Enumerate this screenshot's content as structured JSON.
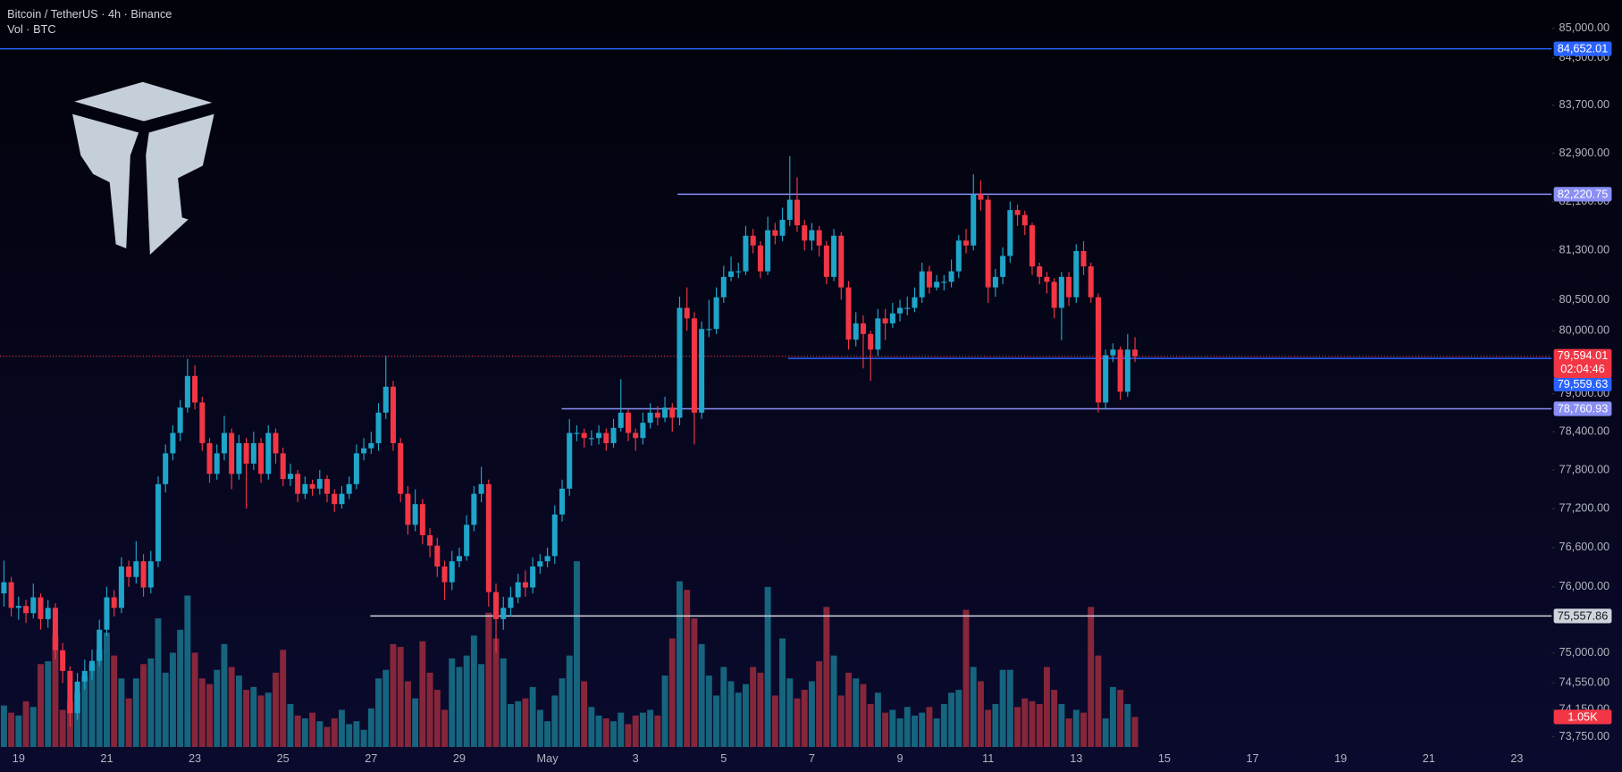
{
  "chart_data": {
    "type": "candlestick",
    "title": "Bitcoin / TetherUS · 4h · Binance",
    "subtitle": "Vol · BTC",
    "log_scale": true,
    "grid": false,
    "up_color": "#1fa5c9",
    "down_color": "#f23645",
    "volume_up_color": "#16647d",
    "volume_down_color": "#86263a",
    "x_labels": [
      "19",
      "21",
      "23",
      "25",
      "27",
      "29",
      "May",
      "3",
      "5",
      "7",
      "9",
      "11",
      "13",
      "15",
      "17",
      "19",
      "21",
      "23"
    ],
    "ylim": [
      73600,
      85480
    ],
    "yticks": [
      {
        "value": 85000,
        "label": "85,000.00"
      },
      {
        "value": 84500,
        "label": "84,500.00"
      },
      {
        "value": 83700,
        "label": "83,700.00"
      },
      {
        "value": 82900,
        "label": "82,900.00"
      },
      {
        "value": 82100,
        "label": "82,100.00"
      },
      {
        "value": 81300,
        "label": "81,300.00"
      },
      {
        "value": 80500,
        "label": "80,500.00"
      },
      {
        "value": 80000,
        "label": "80,000.00"
      },
      {
        "value": 79000,
        "label": "79,000.00"
      },
      {
        "value": 78400,
        "label": "78,400.00"
      },
      {
        "value": 77800,
        "label": "77,800.00"
      },
      {
        "value": 77200,
        "label": "77,200.00"
      },
      {
        "value": 76600,
        "label": "76,600.00"
      },
      {
        "value": 76000,
        "label": "76,000.00"
      },
      {
        "value": 75000,
        "label": "75,000.00"
      },
      {
        "value": 74550,
        "label": "74,550.00"
      },
      {
        "value": 74150,
        "label": "74,150.00"
      },
      {
        "value": 73750,
        "label": "73,750.00"
      }
    ],
    "levels": [
      {
        "value": 84652.01,
        "label": "84,652.01",
        "color": "#2962ff"
      },
      {
        "value": 82220.75,
        "label": "82,220.75",
        "color": "#8a8ff5"
      },
      {
        "value": 79559.63,
        "label": "79,559.63",
        "color": "#2962ff"
      },
      {
        "value": 78760.93,
        "label": "78,760.93",
        "color": "#8a8ff5"
      },
      {
        "value": 75557.86,
        "label": "75,557.86",
        "color": "#d1d4dc"
      }
    ],
    "last_close_label": "79,594.01",
    "countdown": "02:04:46",
    "volume_last_label": "1.05K",
    "open": [
      75900,
      76070,
      75680,
      75710,
      75600,
      75840,
      75510,
      75680,
      75040,
      74730,
      74100,
      74570,
      74730,
      74880,
      75350,
      75840,
      75680,
      76310,
      76150,
      76390,
      75990,
      76390,
      77580,
      78060,
      78380,
      78780,
      79280,
      78860,
      78220,
      77740,
      78060,
      78380,
      77740,
      78220,
      77900,
      78220,
      77740,
      78380,
      78060,
      77660,
      77740,
      77430,
      77580,
      77510,
      77660,
      77430,
      77270,
      77430,
      77580,
      78060,
      78140,
      78220,
      78700,
      79110,
      78220,
      77430,
      76950,
      77270,
      76790,
      76630,
      76310,
      76070,
      76390,
      76470,
      76950,
      77430,
      77580,
      75920,
      75510,
      75680,
      75840,
      76070,
      75990,
      76310,
      76390,
      76470,
      77110,
      77510,
      78380,
      78380,
      78300,
      78300,
      78380,
      78220,
      78460,
      78700,
      78380,
      78300,
      78540,
      78700,
      78620,
      78780,
      78620,
      80370,
      80200,
      78700,
      80030,
      80030,
      80540,
      80870,
      80960,
      80960,
      81540,
      81380,
      80960,
      81630,
      81540,
      81800,
      82130,
      81710,
      81460,
      81630,
      81380,
      80870,
      81540,
      80700,
      79860,
      80120,
      79950,
      79700,
      80200,
      80120,
      80280,
      80370,
      80370,
      80540,
      80960,
      80700,
      80790,
      80790,
      80960,
      81460,
      81380,
      82220,
      82130,
      80700,
      80870,
      81210,
      81960,
      81880,
      81710,
      81040,
      80870,
      80790,
      80370,
      80870,
      80540,
      81290,
      81040,
      80540,
      78860,
      79610,
      79700,
      79030,
      79700
    ],
    "high": [
      76400,
      76150,
      75850,
      75800,
      76050,
      75900,
      75800,
      75750,
      75150,
      74800,
      74700,
      74900,
      75050,
      75500,
      76000,
      75950,
      76450,
      76400,
      76700,
      76500,
      76550,
      77700,
      78200,
      78500,
      78900,
      79550,
      79450,
      78950,
      78300,
      78200,
      78650,
      78450,
      78350,
      78300,
      78400,
      78300,
      78500,
      78450,
      78150,
      77900,
      77800,
      77700,
      77650,
      77800,
      77720,
      77500,
      77550,
      77700,
      78200,
      78300,
      78400,
      78850,
      79600,
      79200,
      78300,
      77550,
      77500,
      77350,
      76900,
      76750,
      76400,
      76550,
      76600,
      77100,
      77550,
      77850,
      77650,
      76050,
      75850,
      76000,
      76200,
      76250,
      76450,
      76500,
      76600,
      77250,
      77650,
      78600,
      78500,
      78450,
      78420,
      78500,
      78450,
      78600,
      79230,
      78750,
      78450,
      78700,
      78850,
      78800,
      78950,
      78850,
      80550,
      80700,
      80300,
      80150,
      80500,
      80700,
      81050,
      81200,
      81100,
      81700,
      81650,
      81450,
      81850,
      81750,
      82000,
      82850,
      82500,
      81800,
      81750,
      81700,
      81450,
      81650,
      81600,
      80800,
      80300,
      80250,
      80000,
      80350,
      80350,
      80450,
      80500,
      80550,
      80700,
      81100,
      81050,
      80900,
      80900,
      81150,
      81550,
      81650,
      82550,
      82450,
      82200,
      81000,
      81350,
      82100,
      82050,
      81950,
      81750,
      81100,
      80950,
      80850,
      80950,
      80950,
      81400,
      81450,
      81100,
      80600,
      79700,
      79800,
      79750,
      79950,
      79900
    ],
    "low": [
      75700,
      75550,
      75500,
      75450,
      75520,
      75350,
      75380,
      74900,
      74550,
      73900,
      74000,
      74450,
      74600,
      74800,
      75250,
      75550,
      75600,
      76000,
      76050,
      75850,
      75900,
      76300,
      77450,
      77950,
      78250,
      78700,
      78750,
      78100,
      77600,
      77650,
      77950,
      77500,
      77650,
      77200,
      77800,
      77600,
      77650,
      77900,
      77550,
      77550,
      77300,
      77350,
      77400,
      77420,
      77300,
      77150,
      77200,
      77350,
      77500,
      77950,
      78050,
      78100,
      78600,
      78100,
      77300,
      76800,
      76850,
      76650,
      76450,
      76150,
      75800,
      75950,
      76300,
      76400,
      76850,
      77300,
      75700,
      75000,
      75350,
      75550,
      75750,
      75850,
      75900,
      76200,
      76300,
      76350,
      77000,
      77400,
      78250,
      78150,
      78180,
      78200,
      78100,
      78150,
      78400,
      78250,
      78100,
      78200,
      78450,
      78500,
      78550,
      78400,
      78500,
      80000,
      78200,
      78600,
      79900,
      79950,
      80450,
      80800,
      80850,
      80900,
      81250,
      80850,
      80900,
      81400,
      81450,
      81700,
      81600,
      81300,
      81300,
      81200,
      80750,
      80800,
      80500,
      79700,
      79750,
      79400,
      79200,
      79600,
      79850,
      80050,
      80150,
      80250,
      80300,
      80450,
      80600,
      80650,
      80650,
      80700,
      80850,
      81250,
      81300,
      81950,
      80450,
      80550,
      80750,
      81100,
      81700,
      81550,
      80900,
      80750,
      80600,
      80200,
      79850,
      80400,
      80450,
      80900,
      80450,
      78700,
      78750,
      79500,
      78900,
      78950,
      79500
    ],
    "close": [
      76070,
      75680,
      75710,
      75600,
      75840,
      75510,
      75680,
      75040,
      74730,
      74100,
      74570,
      74730,
      74880,
      75350,
      75840,
      75680,
      76310,
      76150,
      76390,
      75990,
      76390,
      77580,
      78060,
      78380,
      78780,
      79280,
      78860,
      78220,
      77740,
      78060,
      78380,
      77740,
      78220,
      77900,
      78220,
      77740,
      78380,
      78060,
      77660,
      77740,
      77430,
      77580,
      77510,
      77660,
      77430,
      77270,
      77430,
      77580,
      78060,
      78140,
      78220,
      78700,
      79110,
      78220,
      77430,
      76950,
      77270,
      76790,
      76630,
      76310,
      76070,
      76390,
      76470,
      76950,
      77430,
      77580,
      75920,
      75510,
      75680,
      75840,
      76070,
      75990,
      76310,
      76390,
      76470,
      77110,
      77510,
      78380,
      78380,
      78300,
      78300,
      78380,
      78220,
      78460,
      78700,
      78380,
      78300,
      78540,
      78700,
      78620,
      78780,
      78620,
      80370,
      80200,
      78700,
      80030,
      80030,
      80540,
      80870,
      80960,
      80960,
      81540,
      81380,
      80960,
      81630,
      81540,
      81800,
      82130,
      81710,
      81460,
      81630,
      81380,
      80870,
      81540,
      80700,
      79860,
      80120,
      79950,
      79700,
      80200,
      80120,
      80280,
      80370,
      80370,
      80540,
      80960,
      80700,
      80790,
      80790,
      80960,
      81460,
      81380,
      82220,
      82130,
      80700,
      80870,
      81210,
      81960,
      81880,
      81710,
      81040,
      80870,
      80790,
      80370,
      80870,
      80540,
      81290,
      81040,
      80540,
      78860,
      79610,
      79700,
      79030,
      79700,
      79594.01
    ],
    "volume": [
      1450,
      1200,
      1100,
      1600,
      1400,
      2900,
      3000,
      3900,
      1300,
      1600,
      1900,
      2500,
      2900,
      3400,
      4000,
      3200,
      2400,
      1700,
      2400,
      2900,
      3100,
      4500,
      2600,
      3300,
      4100,
      5300,
      3300,
      2400,
      2200,
      2700,
      3600,
      2800,
      2500,
      2000,
      2100,
      1800,
      1900,
      2600,
      3400,
      1500,
      1100,
      1000,
      1200,
      900,
      700,
      1000,
      1300,
      800,
      900,
      600,
      1350,
      2400,
      2700,
      3600,
      3500,
      2300,
      1700,
      3700,
      2600,
      2000,
      1300,
      3100,
      2800,
      3200,
      3900,
      2900,
      4700,
      3800,
      3100,
      1500,
      1600,
      1700,
      2100,
      1300,
      900,
      1800,
      2400,
      3200,
      6500,
      2300,
      1400,
      1100,
      1000,
      900,
      1200,
      800,
      1100,
      1200,
      1300,
      1100,
      2500,
      3800,
      5800,
      5500,
      4500,
      3600,
      2500,
      1800,
      2800,
      2300,
      1900,
      2200,
      2800,
      2600,
      5600,
      1800,
      3800,
      2400,
      1700,
      2000,
      2300,
      3000,
      4900,
      3200,
      1800,
      2600,
      2400,
      2200,
      1500,
      1900,
      1200,
      1300,
      1000,
      1400,
      1100,
      1200,
      1400,
      1000,
      1500,
      1900,
      2000,
      4800,
      2800,
      2300,
      1300,
      1500,
      2700,
      2700,
      1400,
      1700,
      1600,
      1500,
      2800,
      2000,
      1500,
      1000,
      1300,
      1200,
      4900,
      3200,
      1000,
      2100,
      2000,
      1500,
      1050
    ]
  }
}
